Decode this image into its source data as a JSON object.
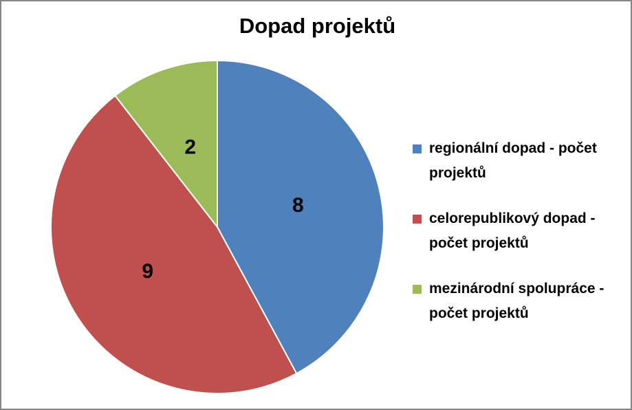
{
  "chart_data": {
    "type": "pie",
    "title": "Dopad projektů",
    "categories": [
      "regionální dopad - počet projektů",
      "celorepublikový dopad - počet projektů",
      "mezinárodní spolupráce - počet projektů"
    ],
    "values": [
      8,
      9,
      2
    ],
    "colors": [
      "#4f81bd",
      "#c0504d",
      "#9bbb59"
    ]
  }
}
